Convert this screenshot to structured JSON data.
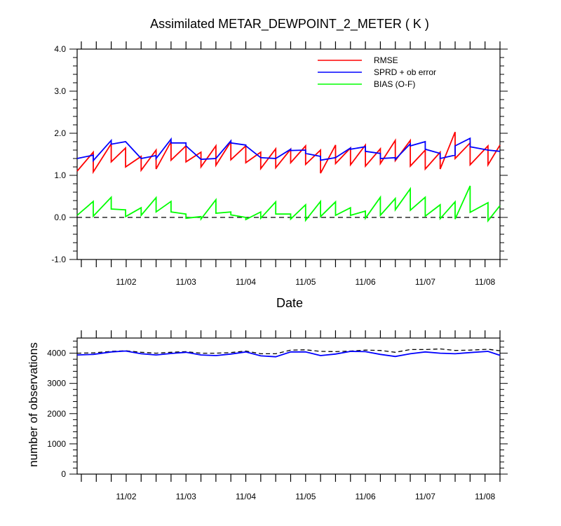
{
  "chart_data": [
    {
      "type": "line",
      "title": "Assimilated METAR_DEWPOINT_2_METER ( K )",
      "xlabel": "Date",
      "ylabel": "",
      "xlim": [
        0.18,
        7.25
      ],
      "ylim": [
        -1.0,
        4.0
      ],
      "yticks": [
        -1.0,
        0.0,
        1.0,
        2.0,
        3.0,
        4.0
      ],
      "ytick_labels": [
        "-1.0",
        "0.0",
        "1.0",
        "2.0",
        "3.0",
        "4.0"
      ],
      "xtick_positions": [
        1,
        2,
        3,
        4,
        5,
        6,
        7
      ],
      "xtick_labels": [
        "11/02",
        "11/03",
        "11/04",
        "11/05",
        "11/06",
        "11/07",
        "11/08"
      ],
      "reference_line": {
        "y": 0.0,
        "style": "dashed"
      },
      "legend": {
        "placement": "top-right",
        "entries": [
          "RMSE",
          "SPRD + ob error",
          "BIAS (O-F)"
        ]
      },
      "colors": {
        "RMSE": "#ff0000",
        "SPRD + ob error": "#0000ff",
        "BIAS (O-F)": "#00ff00"
      },
      "series": [
        {
          "name": "RMSE",
          "color": "#ff0000",
          "points": [
            [
              0.18,
              1.1
            ],
            [
              0.45,
              1.55
            ],
            [
              0.45,
              1.08
            ],
            [
              0.75,
              1.75
            ],
            [
              0.75,
              1.32
            ],
            [
              0.99,
              1.65
            ],
            [
              0.99,
              1.2
            ],
            [
              1.25,
              1.45
            ],
            [
              1.25,
              1.12
            ],
            [
              1.5,
              1.6
            ],
            [
              1.5,
              1.15
            ],
            [
              1.75,
              1.8
            ],
            [
              1.75,
              1.36
            ],
            [
              2.0,
              1.7
            ],
            [
              2.0,
              1.32
            ],
            [
              2.25,
              1.55
            ],
            [
              2.25,
              1.2
            ],
            [
              2.5,
              1.7
            ],
            [
              2.5,
              1.24
            ],
            [
              2.75,
              1.8
            ],
            [
              2.75,
              1.37
            ],
            [
              3.0,
              1.7
            ],
            [
              3.0,
              1.3
            ],
            [
              3.25,
              1.55
            ],
            [
              3.25,
              1.16
            ],
            [
              3.5,
              1.63
            ],
            [
              3.5,
              1.18
            ],
            [
              3.75,
              1.62
            ],
            [
              3.75,
              1.3
            ],
            [
              4.0,
              1.7
            ],
            [
              4.0,
              1.26
            ],
            [
              4.25,
              1.6
            ],
            [
              4.25,
              1.05
            ],
            [
              4.5,
              1.72
            ],
            [
              4.5,
              1.28
            ],
            [
              4.75,
              1.65
            ],
            [
              4.75,
              1.25
            ],
            [
              5.0,
              1.72
            ],
            [
              5.0,
              1.22
            ],
            [
              5.25,
              1.63
            ],
            [
              5.25,
              1.28
            ],
            [
              5.5,
              1.83
            ],
            [
              5.5,
              1.35
            ],
            [
              5.75,
              1.83
            ],
            [
              5.75,
              1.22
            ],
            [
              6.0,
              1.6
            ],
            [
              6.0,
              1.15
            ],
            [
              6.25,
              1.55
            ],
            [
              6.25,
              1.15
            ],
            [
              6.5,
              2.03
            ],
            [
              6.5,
              1.4
            ],
            [
              6.75,
              1.77
            ],
            [
              6.75,
              1.25
            ],
            [
              7.05,
              1.7
            ],
            [
              7.05,
              1.25
            ],
            [
              7.25,
              1.72
            ]
          ]
        },
        {
          "name": "SPRD + ob error",
          "color": "#0000ff",
          "points": [
            [
              0.18,
              1.4
            ],
            [
              0.45,
              1.48
            ],
            [
              0.45,
              1.35
            ],
            [
              0.75,
              1.83
            ],
            [
              0.75,
              1.74
            ],
            [
              0.99,
              1.8
            ],
            [
              0.99,
              1.8
            ],
            [
              1.25,
              1.4
            ],
            [
              1.25,
              1.4
            ],
            [
              1.5,
              1.47
            ],
            [
              1.5,
              1.4
            ],
            [
              1.75,
              1.86
            ],
            [
              1.75,
              1.77
            ],
            [
              2.0,
              1.77
            ],
            [
              2.0,
              1.7
            ],
            [
              2.25,
              1.38
            ],
            [
              2.25,
              1.38
            ],
            [
              2.5,
              1.4
            ],
            [
              2.5,
              1.4
            ],
            [
              2.75,
              1.82
            ],
            [
              2.75,
              1.77
            ],
            [
              3.0,
              1.72
            ],
            [
              3.0,
              1.7
            ],
            [
              3.25,
              1.42
            ],
            [
              3.25,
              1.42
            ],
            [
              3.5,
              1.4
            ],
            [
              3.5,
              1.4
            ],
            [
              3.75,
              1.62
            ],
            [
              3.75,
              1.59
            ],
            [
              4.0,
              1.6
            ],
            [
              4.0,
              1.52
            ],
            [
              4.25,
              1.45
            ],
            [
              4.25,
              1.36
            ],
            [
              4.5,
              1.42
            ],
            [
              4.5,
              1.42
            ],
            [
              4.75,
              1.65
            ],
            [
              4.75,
              1.62
            ],
            [
              5.0,
              1.68
            ],
            [
              5.0,
              1.57
            ],
            [
              5.25,
              1.52
            ],
            [
              5.25,
              1.4
            ],
            [
              5.5,
              1.42
            ],
            [
              5.5,
              1.38
            ],
            [
              5.75,
              1.75
            ],
            [
              5.75,
              1.7
            ],
            [
              6.0,
              1.8
            ],
            [
              6.0,
              1.62
            ],
            [
              6.25,
              1.52
            ],
            [
              6.25,
              1.4
            ],
            [
              6.5,
              1.48
            ],
            [
              6.5,
              1.7
            ],
            [
              6.75,
              1.88
            ],
            [
              6.75,
              1.68
            ],
            [
              7.05,
              1.6
            ],
            [
              7.05,
              1.6
            ],
            [
              7.25,
              1.57
            ]
          ]
        },
        {
          "name": "BIAS (O-F)",
          "color": "#00ff00",
          "points": [
            [
              0.18,
              0.05
            ],
            [
              0.45,
              0.38
            ],
            [
              0.45,
              0.03
            ],
            [
              0.75,
              0.48
            ],
            [
              0.75,
              0.2
            ],
            [
              0.99,
              0.18
            ],
            [
              0.99,
              0.02
            ],
            [
              1.25,
              0.23
            ],
            [
              1.25,
              0.05
            ],
            [
              1.5,
              0.47
            ],
            [
              1.5,
              0.13
            ],
            [
              1.75,
              0.38
            ],
            [
              1.75,
              0.13
            ],
            [
              2.0,
              0.08
            ],
            [
              2.0,
              -0.02
            ],
            [
              2.25,
              0.02
            ],
            [
              2.25,
              -0.04
            ],
            [
              2.5,
              0.42
            ],
            [
              2.5,
              0.1
            ],
            [
              2.75,
              0.13
            ],
            [
              2.75,
              0.06
            ],
            [
              3.0,
              0.0
            ],
            [
              3.0,
              -0.05
            ],
            [
              3.25,
              0.13
            ],
            [
              3.25,
              -0.02
            ],
            [
              3.5,
              0.37
            ],
            [
              3.5,
              0.08
            ],
            [
              3.75,
              0.08
            ],
            [
              3.75,
              -0.04
            ],
            [
              4.0,
              0.3
            ],
            [
              4.0,
              -0.07
            ],
            [
              4.25,
              0.38
            ],
            [
              4.25,
              0.02
            ],
            [
              4.5,
              0.37
            ],
            [
              4.5,
              0.05
            ],
            [
              4.75,
              0.23
            ],
            [
              4.75,
              0.05
            ],
            [
              5.0,
              0.15
            ],
            [
              5.0,
              -0.02
            ],
            [
              5.25,
              0.48
            ],
            [
              5.25,
              0.05
            ],
            [
              5.5,
              0.45
            ],
            [
              5.5,
              0.18
            ],
            [
              5.75,
              0.68
            ],
            [
              5.75,
              0.17
            ],
            [
              6.0,
              0.48
            ],
            [
              6.0,
              0.03
            ],
            [
              6.25,
              0.3
            ],
            [
              6.25,
              -0.03
            ],
            [
              6.5,
              0.37
            ],
            [
              6.5,
              -0.04
            ],
            [
              6.75,
              0.75
            ],
            [
              6.75,
              0.12
            ],
            [
              7.05,
              0.35
            ],
            [
              7.05,
              -0.08
            ],
            [
              7.25,
              0.28
            ]
          ]
        }
      ]
    },
    {
      "type": "line",
      "title": "",
      "xlabel": "",
      "ylabel": "number of observations",
      "xlim": [
        0.18,
        7.25
      ],
      "ylim": [
        0,
        4500
      ],
      "yticks": [
        0,
        1000,
        2000,
        3000,
        4000
      ],
      "ytick_labels": [
        "0",
        "1000",
        "2000",
        "3000",
        "4000"
      ],
      "xtick_positions": [
        1,
        2,
        3,
        4,
        5,
        6,
        7
      ],
      "xtick_labels": [
        "11/02",
        "11/03",
        "11/04",
        "11/05",
        "11/06",
        "11/07",
        "11/08"
      ],
      "series": [
        {
          "name": "",
          "color": "#000000",
          "style": "dashed",
          "x": [
            0.18,
            0.45,
            0.75,
            0.99,
            1.25,
            1.5,
            1.75,
            2.0,
            2.25,
            2.5,
            2.75,
            3.0,
            3.25,
            3.5,
            3.75,
            4.0,
            4.25,
            4.5,
            4.75,
            5.0,
            5.25,
            5.5,
            5.75,
            6.0,
            6.25,
            6.5,
            6.75,
            7.05,
            7.25
          ],
          "values": [
            4000,
            4010,
            4060,
            4080,
            4030,
            4000,
            4030,
            4050,
            4000,
            4000,
            4020,
            4070,
            3980,
            3980,
            4100,
            4110,
            4060,
            4050,
            4070,
            4100,
            4090,
            4030,
            4120,
            4120,
            4140,
            4090,
            4100,
            4130,
            4080
          ]
        },
        {
          "name": "",
          "color": "#0000ff",
          "style": "solid",
          "x": [
            0.18,
            0.45,
            0.75,
            0.99,
            1.25,
            1.5,
            1.75,
            2.0,
            2.25,
            2.5,
            2.75,
            3.0,
            3.25,
            3.5,
            3.75,
            4.0,
            4.25,
            4.5,
            4.75,
            5.0,
            5.25,
            5.5,
            5.75,
            6.0,
            6.25,
            6.5,
            6.75,
            7.05,
            7.25
          ],
          "values": [
            3940,
            3960,
            4040,
            4070,
            3980,
            3940,
            3990,
            4030,
            3940,
            3920,
            3970,
            4040,
            3910,
            3880,
            4040,
            4040,
            3920,
            3970,
            4060,
            4050,
            3960,
            3890,
            3980,
            4040,
            4000,
            3980,
            4020,
            4060,
            3930
          ]
        }
      ]
    }
  ]
}
